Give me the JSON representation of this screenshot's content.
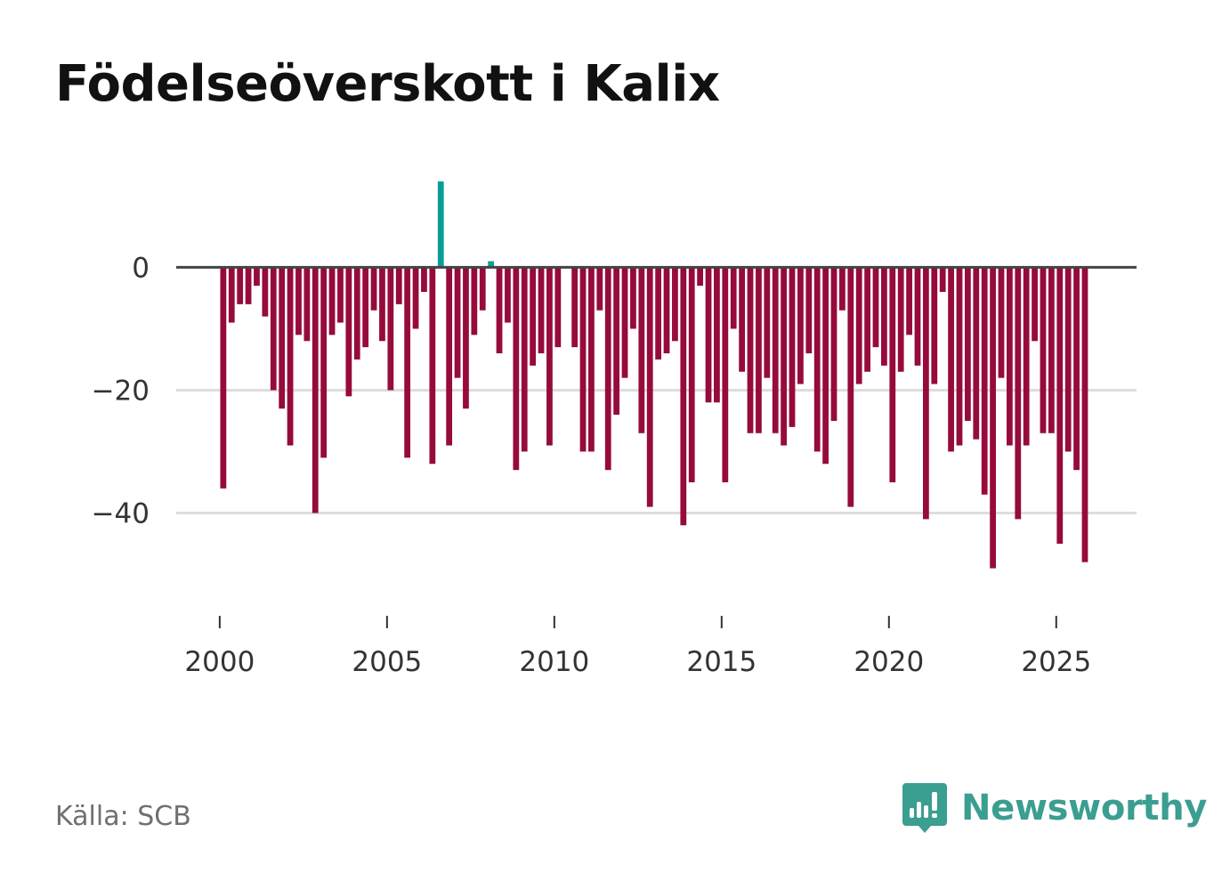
{
  "title": "Födelseöverskott i Kalix",
  "source": "Källa: SCB",
  "brand": {
    "name": "Newsworthy",
    "icon": "newsworthy-logo-icon"
  },
  "colors": {
    "positive": "#0a9e96",
    "negative": "#960a3c",
    "zero_line": "#444444",
    "grid": "#dddddd",
    "brand": "#3a9e90"
  },
  "chart_data": {
    "type": "bar",
    "frequency": "quarterly",
    "x_start": 2000.0,
    "x_step": 0.25,
    "values": [
      -36,
      -9,
      -6,
      -6,
      -3,
      -8,
      -20,
      -23,
      -29,
      -11,
      -12,
      -40,
      -31,
      -11,
      -9,
      -21,
      -15,
      -13,
      -7,
      -12,
      -20,
      -6,
      -31,
      -10,
      -4,
      -32,
      14,
      -29,
      -18,
      -23,
      -11,
      -7,
      1,
      -14,
      -9,
      -33,
      -30,
      -16,
      -14,
      -29,
      -13,
      0,
      -13,
      -30,
      -30,
      -7,
      -33,
      -24,
      -18,
      -10,
      -27,
      -39,
      -15,
      -14,
      -12,
      -42,
      -35,
      -3,
      -22,
      -22,
      -35,
      -10,
      -17,
      -27,
      -27,
      -18,
      -27,
      -29,
      -26,
      -19,
      -14,
      -30,
      -32,
      -25,
      -7,
      -39,
      -19,
      -17,
      -13,
      -16,
      -35,
      -17,
      -11,
      -16,
      -41,
      -19,
      -4,
      -30,
      -29,
      -25,
      -28,
      -37,
      -49,
      -18,
      -29,
      -41,
      -29,
      -12,
      -27,
      -27,
      -45,
      -30,
      -33,
      -48
    ],
    "y_ticks": [
      {
        "value": 0,
        "label": "0"
      },
      {
        "value": -20,
        "label": "−20"
      },
      {
        "value": -40,
        "label": "−40"
      }
    ],
    "x_ticks": [
      {
        "value": 2000,
        "label": "2000"
      },
      {
        "value": 2005,
        "label": "2005"
      },
      {
        "value": 2010,
        "label": "2010"
      },
      {
        "value": 2015,
        "label": "2015"
      },
      {
        "value": 2020,
        "label": "2020"
      },
      {
        "value": 2025,
        "label": "2025"
      }
    ],
    "ylim": [
      -55,
      16
    ],
    "xlim": [
      1998.7,
      2027.4
    ],
    "xlabel": "",
    "ylabel": ""
  }
}
